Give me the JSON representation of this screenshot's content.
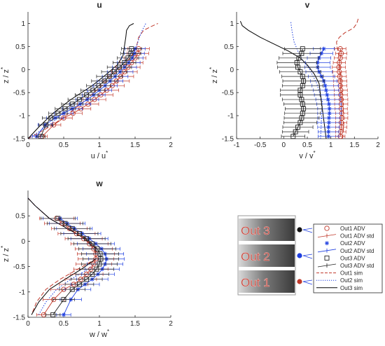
{
  "chart_data": [
    {
      "id": "u",
      "type": "line",
      "title": "u",
      "xlabel": "u / u",
      "xlabel_sup": "*",
      "ylabel": "z / z",
      "ylabel_sup": "*",
      "xlim": [
        0,
        2
      ],
      "ylim": [
        -1.5,
        1.25
      ],
      "xticks": [
        0,
        0.5,
        1,
        1.5,
        2
      ],
      "xtick_labels": [
        "0",
        "0.5",
        "1",
        "1.5",
        "2"
      ],
      "yticks": [
        -1.5,
        -1,
        -0.5,
        0,
        0.5,
        1
      ],
      "ytick_labels": [
        "-1.5",
        "-1",
        "-0.5",
        "0",
        "0.5",
        "1"
      ],
      "sim": [
        {
          "name": "Out1 sim",
          "x": [
            0.0,
            0.35,
            0.7,
            1.0,
            1.2,
            1.35,
            1.45,
            1.52,
            1.55,
            1.62,
            1.72,
            1.82
          ],
          "y": [
            -1.5,
            -1.2,
            -0.8,
            -0.4,
            -0.1,
            0.1,
            0.3,
            0.5,
            0.7,
            0.85,
            0.93,
            1.0
          ]
        },
        {
          "name": "Out2 sim",
          "x": [
            0.0,
            0.3,
            0.6,
            0.9,
            1.15,
            1.3,
            1.42,
            1.52,
            1.56,
            1.6,
            1.65
          ],
          "y": [
            -1.5,
            -1.2,
            -0.8,
            -0.4,
            -0.1,
            0.1,
            0.3,
            0.5,
            0.7,
            0.85,
            1.0
          ]
        },
        {
          "name": "Out3 sim",
          "x": [
            0.0,
            0.15,
            0.35,
            0.6,
            0.9,
            1.1,
            1.25,
            1.33,
            1.35,
            1.37,
            1.38,
            1.42,
            1.48
          ],
          "y": [
            -1.5,
            -1.25,
            -0.95,
            -0.65,
            -0.35,
            -0.1,
            0.1,
            0.3,
            0.5,
            0.7,
            0.85,
            0.95,
            1.0
          ]
        }
      ],
      "adv": [
        {
          "name": "Out1 ADV",
          "x": [
            1.55,
            1.54,
            1.5,
            1.45,
            1.4,
            1.35,
            1.3,
            1.24,
            1.18,
            1.1,
            1.02,
            0.93,
            0.84,
            0.74,
            0.63,
            0.5,
            0.36,
            0.2
          ],
          "y": [
            0.45,
            0.35,
            0.25,
            0.15,
            0.05,
            -0.05,
            -0.15,
            -0.25,
            -0.35,
            -0.45,
            -0.55,
            -0.65,
            -0.75,
            -0.85,
            -0.95,
            -1.05,
            -1.2,
            -1.45
          ],
          "err": [
            0.15,
            0.15,
            0.15,
            0.16,
            0.17,
            0.18,
            0.18,
            0.18,
            0.17,
            0.17,
            0.17,
            0.16,
            0.15,
            0.14,
            0.13,
            0.12,
            0.1,
            0.07
          ]
        },
        {
          "name": "Out2 ADV",
          "x": [
            1.5,
            1.49,
            1.46,
            1.41,
            1.35,
            1.29,
            1.22,
            1.15,
            1.08,
            1.0,
            0.92,
            0.83,
            0.73,
            0.62,
            0.5,
            0.38,
            0.24,
            0.12
          ],
          "y": [
            0.45,
            0.35,
            0.25,
            0.15,
            0.05,
            -0.05,
            -0.15,
            -0.25,
            -0.35,
            -0.45,
            -0.55,
            -0.65,
            -0.75,
            -0.85,
            -0.95,
            -1.05,
            -1.2,
            -1.45
          ],
          "err": [
            0.14,
            0.14,
            0.15,
            0.16,
            0.17,
            0.18,
            0.18,
            0.18,
            0.17,
            0.17,
            0.16,
            0.16,
            0.15,
            0.14,
            0.13,
            0.12,
            0.1,
            0.06
          ]
        },
        {
          "name": "Out3 ADV",
          "x": [
            1.45,
            1.44,
            1.4,
            1.35,
            1.28,
            1.21,
            1.14,
            1.07,
            0.99,
            0.91,
            0.82,
            0.72,
            0.62,
            0.52,
            0.42,
            0.32,
            0.25,
            0.18
          ],
          "y": [
            0.45,
            0.35,
            0.25,
            0.15,
            0.05,
            -0.05,
            -0.15,
            -0.25,
            -0.35,
            -0.45,
            -0.55,
            -0.65,
            -0.75,
            -0.85,
            -0.95,
            -1.05,
            -1.2,
            -1.45
          ],
          "err": [
            0.14,
            0.14,
            0.15,
            0.16,
            0.17,
            0.18,
            0.18,
            0.18,
            0.17,
            0.17,
            0.16,
            0.16,
            0.15,
            0.14,
            0.13,
            0.12,
            0.1,
            0.06
          ]
        }
      ]
    },
    {
      "id": "v",
      "type": "line",
      "title": "v",
      "xlabel": "v / v",
      "xlabel_sup": "*",
      "ylabel": "z / z",
      "ylabel_sup": "*",
      "xlim": [
        -1,
        2
      ],
      "ylim": [
        -1.5,
        1.25
      ],
      "xticks": [
        -1,
        -0.5,
        0,
        0.5,
        1,
        1.5,
        2
      ],
      "xtick_labels": [
        "-1",
        "-0.5",
        "0",
        "0.5",
        "1",
        "1.5",
        "2"
      ],
      "yticks": [
        -1.5,
        -1,
        -0.5,
        0,
        0.5,
        1
      ],
      "ytick_labels": [
        "-1.5",
        "-1",
        "-0.5",
        "0",
        "0.5",
        "1"
      ],
      "sim": [
        {
          "name": "Out1 sim",
          "x": [
            1.25,
            1.28,
            1.25,
            1.22,
            1.2,
            1.18,
            1.15,
            1.13,
            1.12,
            1.18,
            1.3,
            1.48,
            1.55,
            1.58
          ],
          "y": [
            -1.5,
            -1.1,
            -0.7,
            -0.3,
            0.0,
            0.2,
            0.4,
            0.5,
            0.6,
            0.7,
            0.8,
            0.9,
            1.0,
            1.1
          ]
        },
        {
          "name": "Out2 sim",
          "x": [
            0.78,
            0.8,
            0.82,
            0.7,
            0.55,
            0.4,
            0.3,
            0.22,
            0.18,
            0.16,
            0.15
          ],
          "y": [
            -1.5,
            -1.1,
            -0.7,
            -0.3,
            0.0,
            0.2,
            0.4,
            0.6,
            0.8,
            0.95,
            1.05
          ]
        },
        {
          "name": "Out3 sim",
          "x": [
            0.9,
            0.85,
            0.8,
            0.75,
            0.65,
            0.5,
            0.35,
            0.1,
            -0.2,
            -0.5,
            -0.75,
            -0.88,
            -0.92
          ],
          "y": [
            -1.5,
            -1.1,
            -0.7,
            -0.3,
            -0.1,
            0.1,
            0.25,
            0.4,
            0.55,
            0.7,
            0.85,
            0.95,
            1.05
          ]
        }
      ],
      "adv": [
        {
          "name": "Out1 ADV",
          "x": [
            1.2,
            1.22,
            1.2,
            1.18,
            1.17,
            1.18,
            1.19,
            1.2,
            1.2,
            1.21,
            1.21,
            1.22,
            1.22,
            1.22,
            1.23,
            1.23,
            1.22,
            1.22,
            1.21,
            1.2
          ],
          "y": [
            0.45,
            0.35,
            0.25,
            0.15,
            0.05,
            -0.05,
            -0.15,
            -0.25,
            -0.35,
            -0.45,
            -0.55,
            -0.65,
            -0.75,
            -0.85,
            -0.95,
            -1.05,
            -1.15,
            -1.25,
            -1.35,
            -1.45
          ],
          "err": [
            0.12,
            0.12,
            0.13,
            0.13,
            0.14,
            0.14,
            0.14,
            0.14,
            0.14,
            0.14,
            0.14,
            0.14,
            0.14,
            0.13,
            0.13,
            0.13,
            0.12,
            0.12,
            0.11,
            0.1
          ]
        },
        {
          "name": "Out2 ADV",
          "x": [
            0.85,
            0.8,
            0.75,
            0.72,
            0.72,
            0.75,
            0.8,
            0.85,
            0.88,
            0.9,
            0.92,
            0.94,
            0.96,
            0.97,
            0.97,
            0.96,
            0.96,
            0.95,
            0.95,
            0.95
          ],
          "y": [
            0.45,
            0.35,
            0.25,
            0.15,
            0.05,
            -0.05,
            -0.15,
            -0.25,
            -0.35,
            -0.45,
            -0.55,
            -0.65,
            -0.75,
            -0.85,
            -0.95,
            -1.05,
            -1.15,
            -1.25,
            -1.35,
            -1.45
          ],
          "err": [
            0.22,
            0.24,
            0.25,
            0.26,
            0.27,
            0.28,
            0.28,
            0.28,
            0.28,
            0.27,
            0.27,
            0.26,
            0.26,
            0.25,
            0.25,
            0.24,
            0.24,
            0.23,
            0.22,
            0.22
          ]
        },
        {
          "name": "Out3 ADV",
          "x": [
            0.4,
            0.38,
            0.32,
            0.28,
            0.3,
            0.35,
            0.4,
            0.42,
            0.4,
            0.35,
            0.35,
            0.38,
            0.4,
            0.42,
            0.4,
            0.38,
            0.35,
            0.3,
            0.25,
            0.2
          ],
          "y": [
            0.45,
            0.35,
            0.25,
            0.15,
            0.05,
            -0.05,
            -0.15,
            -0.25,
            -0.35,
            -0.45,
            -0.55,
            -0.65,
            -0.75,
            -0.85,
            -0.95,
            -1.05,
            -1.15,
            -1.25,
            -1.35,
            -1.45
          ],
          "err": [
            0.38,
            0.4,
            0.42,
            0.42,
            0.43,
            0.44,
            0.44,
            0.44,
            0.43,
            0.42,
            0.42,
            0.41,
            0.4,
            0.39,
            0.38,
            0.37,
            0.35,
            0.32,
            0.28,
            0.25
          ]
        }
      ]
    },
    {
      "id": "w",
      "type": "line",
      "title": "w",
      "xlabel": "w / w",
      "xlabel_sup": "*",
      "ylabel": "z / z",
      "ylabel_sup": "*",
      "xlim": [
        0,
        2
      ],
      "ylim": [
        -1.5,
        1.0
      ],
      "xticks": [
        0,
        0.5,
        1,
        1.5,
        2
      ],
      "xtick_labels": [
        "0",
        "0.5",
        "1",
        "1.5",
        "2"
      ],
      "yticks": [
        -1.5,
        -1,
        -0.5,
        0,
        0.5
      ],
      "ytick_labels": [
        "-1.5",
        "-1",
        "-0.5",
        "0",
        "0.5"
      ],
      "sim": [
        {
          "name": "Out1 sim",
          "x": [
            0.0,
            0.1,
            0.3,
            0.55,
            0.8,
            0.95,
            0.95,
            0.7,
            0.45,
            0.25,
            0.12,
            0.05
          ],
          "y": [
            0.85,
            0.7,
            0.45,
            0.25,
            0.05,
            -0.15,
            -0.35,
            -0.55,
            -0.75,
            -0.95,
            -1.2,
            -1.45
          ]
        },
        {
          "name": "Out2 sim",
          "x": [
            0.0,
            0.1,
            0.3,
            0.55,
            0.8,
            0.95,
            1.0,
            0.85,
            0.6,
            0.4,
            0.25,
            0.15
          ],
          "y": [
            0.85,
            0.7,
            0.45,
            0.25,
            0.05,
            -0.15,
            -0.35,
            -0.55,
            -0.75,
            -0.95,
            -1.2,
            -1.45
          ]
        },
        {
          "name": "Out3 sim",
          "x": [
            0.0,
            0.1,
            0.3,
            0.55,
            0.8,
            0.95,
            0.95,
            0.75,
            0.52,
            0.3,
            0.15,
            0.05
          ],
          "y": [
            0.85,
            0.7,
            0.45,
            0.25,
            0.05,
            -0.15,
            -0.35,
            -0.55,
            -0.75,
            -0.95,
            -1.2,
            -1.45
          ]
        }
      ],
      "adv": [
        {
          "name": "Out1 ADV",
          "x": [
            0.4,
            0.48,
            0.58,
            0.68,
            0.78,
            0.86,
            0.92,
            0.95,
            0.95,
            0.92,
            0.88,
            0.82,
            0.74,
            0.64,
            0.5,
            0.36,
            0.22
          ],
          "y": [
            0.45,
            0.35,
            0.25,
            0.15,
            0.05,
            -0.05,
            -0.15,
            -0.25,
            -0.35,
            -0.45,
            -0.55,
            -0.65,
            -0.75,
            -0.85,
            -0.95,
            -1.15,
            -1.45
          ],
          "err": [
            0.24,
            0.25,
            0.25,
            0.26,
            0.26,
            0.26,
            0.26,
            0.26,
            0.25,
            0.25,
            0.24,
            0.23,
            0.22,
            0.2,
            0.18,
            0.15,
            0.1
          ]
        },
        {
          "name": "Out2 ADV",
          "x": [
            0.45,
            0.55,
            0.65,
            0.76,
            0.86,
            0.95,
            1.03,
            1.08,
            1.1,
            1.08,
            1.04,
            0.98,
            0.9,
            0.8,
            0.7,
            0.6,
            0.5
          ],
          "y": [
            0.45,
            0.35,
            0.25,
            0.15,
            0.05,
            -0.05,
            -0.15,
            -0.25,
            -0.35,
            -0.45,
            -0.55,
            -0.65,
            -0.75,
            -0.85,
            -0.95,
            -1.15,
            -1.45
          ],
          "err": [
            0.24,
            0.25,
            0.25,
            0.26,
            0.26,
            0.26,
            0.26,
            0.26,
            0.25,
            0.25,
            0.24,
            0.23,
            0.22,
            0.2,
            0.18,
            0.15,
            0.1
          ]
        },
        {
          "name": "Out3 ADV",
          "x": [
            0.42,
            0.52,
            0.62,
            0.72,
            0.82,
            0.9,
            0.97,
            1.01,
            1.02,
            1.0,
            0.96,
            0.9,
            0.82,
            0.72,
            0.62,
            0.5,
            0.35
          ],
          "y": [
            0.45,
            0.35,
            0.25,
            0.15,
            0.05,
            -0.05,
            -0.15,
            -0.25,
            -0.35,
            -0.45,
            -0.55,
            -0.65,
            -0.75,
            -0.85,
            -0.95,
            -1.15,
            -1.45
          ],
          "err": [
            0.24,
            0.25,
            0.25,
            0.26,
            0.26,
            0.26,
            0.26,
            0.26,
            0.25,
            0.25,
            0.24,
            0.23,
            0.22,
            0.2,
            0.18,
            0.15,
            0.1
          ]
        }
      ]
    }
  ],
  "legend": {
    "entries": [
      {
        "label": "Out1 ADV",
        "kind": "marker-circle",
        "color": "#c0392b"
      },
      {
        "label": "Out1 ADV std",
        "kind": "errorbar",
        "color": "#c0392b"
      },
      {
        "label": "Out2 ADV",
        "kind": "marker-star",
        "color": "#1f3fe0"
      },
      {
        "label": "Out2 ADV std",
        "kind": "errorbar",
        "color": "#1f3fe0"
      },
      {
        "label": "Out3 ADV",
        "kind": "marker-square",
        "color": "#222222"
      },
      {
        "label": "Out3 ADV std",
        "kind": "errorbar",
        "color": "#222222"
      },
      {
        "label": "Out1 sim",
        "kind": "line-dashed",
        "color": "#c0392b"
      },
      {
        "label": "Out2 sim",
        "kind": "line-dotted",
        "color": "#1f3fe0"
      },
      {
        "label": "Out3 sim",
        "kind": "line-solid",
        "color": "#000000"
      }
    ]
  },
  "sketch": {
    "outlets": [
      {
        "label": "Out 3",
        "dot_color": "#111111"
      },
      {
        "label": "Out 2",
        "dot_color": "#1f3fe0"
      },
      {
        "label": "Out 1",
        "dot_color": "#c0392b"
      }
    ]
  },
  "colors": {
    "out1": "#c0392b",
    "out2": "#1f3fe0",
    "out3": "#222222",
    "sim3": "#000000"
  }
}
